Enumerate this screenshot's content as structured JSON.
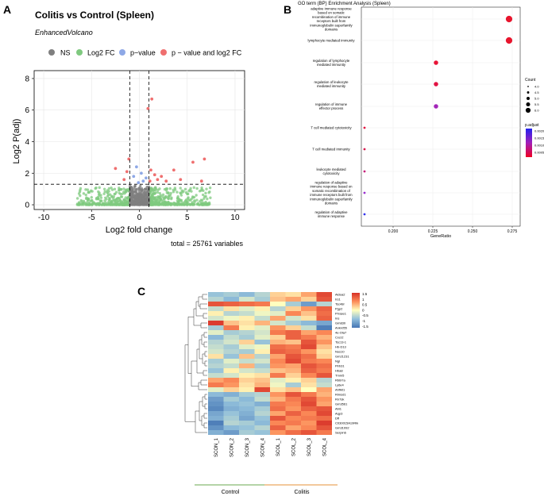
{
  "panels": {
    "a": "A",
    "b": "B",
    "c": "C"
  },
  "chart_data": [
    {
      "type": "scatter",
      "title": "Colitis vs Control (Spleen)",
      "subtitle": "EnhancedVolcano",
      "legend": {
        "placement": "top",
        "entries": [
          {
            "label": "NS",
            "color": "#7f7f7f"
          },
          {
            "label": "Log2 FC",
            "color": "#7fc97f"
          },
          {
            "label": "p−value",
            "color": "#8ea8e6"
          },
          {
            "label": "p − value and log2 FC",
            "color": "#ef6f6f"
          }
        ]
      },
      "xlabel": "Log2 fold change",
      "ylabel": "Log2 P(adj)",
      "xlim": [
        -11,
        11
      ],
      "ylim": [
        -0.3,
        8.5
      ],
      "xticks": [
        -10,
        -5,
        0,
        5,
        10
      ],
      "yticks": [
        0,
        2,
        4,
        6,
        8
      ],
      "fc_cutoff": 1,
      "p_cutoff": 1.3,
      "caption": "total = 25761 variables",
      "significant_points": [
        {
          "x": 1.3,
          "y": 6.7
        },
        {
          "x": 0.9,
          "y": 6.1
        },
        {
          "x": 6.8,
          "y": 2.9
        },
        {
          "x": 5.6,
          "y": 2.7
        },
        {
          "x": -1.1,
          "y": 2.9
        },
        {
          "x": -2.5,
          "y": 2.3
        },
        {
          "x": -1.3,
          "y": 2.1
        },
        {
          "x": 1.2,
          "y": 2.2
        },
        {
          "x": 1.6,
          "y": 1.9
        },
        {
          "x": 2.3,
          "y": 1.8
        },
        {
          "x": 3.6,
          "y": 2.2
        },
        {
          "x": 4.3,
          "y": 1.6
        },
        {
          "x": 6.5,
          "y": 1.5
        },
        {
          "x": -1.6,
          "y": 1.6
        },
        {
          "x": 1.1,
          "y": 1.5
        },
        {
          "x": 2.8,
          "y": 1.5
        },
        {
          "x": 1.9,
          "y": 1.6
        }
      ],
      "pvalue_points": [
        {
          "x": -0.3,
          "y": 2.4
        },
        {
          "x": 0.2,
          "y": 2.0
        },
        {
          "x": -0.6,
          "y": 1.8
        },
        {
          "x": 0.4,
          "y": 1.5
        },
        {
          "x": -0.1,
          "y": 1.4
        },
        {
          "x": 0.7,
          "y": 1.7
        }
      ]
    },
    {
      "type": "dot",
      "title": "GO term (BP) Enrichment Analysis (Spleen)",
      "xlabel": "GeneRatio",
      "xlim": [
        0.18,
        0.28
      ],
      "xticks": [
        0.2,
        0.225,
        0.25,
        0.275
      ],
      "xticklabels": [
        "0.200",
        "0.225",
        "0.250",
        "0.275"
      ],
      "terms": [
        {
          "label": "adaptive immune response based on somatic recombination of immune receptors built from immunoglobulin superfamily domains",
          "lines": [
            "adaptive immune response",
            "based on somatic",
            "recombination of immune",
            "receptors built from",
            "immunoglobulin superfamily",
            "domains"
          ],
          "gene_ratio": 0.273,
          "count": 6,
          "padj": 0.0002,
          "color": "#e8152d"
        },
        {
          "label": "lymphocyte mediated immunity",
          "lines": [
            "lymphocyte mediated immunity"
          ],
          "gene_ratio": 0.273,
          "count": 6,
          "padj": 0.0002,
          "color": "#e8152d"
        },
        {
          "label": "regulation of lymphocyte mediated immunity",
          "lines": [
            "regulation of lymphocyte",
            "mediated immunity"
          ],
          "gene_ratio": 0.227,
          "count": 5,
          "padj": 0.0004,
          "color": "#e81437"
        },
        {
          "label": "regulation of leukocyte mediated immunity",
          "lines": [
            "regulation of leukocyte",
            "mediated immunity"
          ],
          "gene_ratio": 0.227,
          "count": 5,
          "padj": 0.0005,
          "color": "#e21343"
        },
        {
          "label": "regulation of immune effector process",
          "lines": [
            "regulation of immune",
            "effector process"
          ],
          "gene_ratio": 0.227,
          "count": 5,
          "padj": 0.0017,
          "color": "#a326b8"
        },
        {
          "label": "T cell mediated cytotoxicity",
          "lines": [
            "T cell mediated cytotoxicity"
          ],
          "gene_ratio": 0.182,
          "count": 4,
          "padj": 0.0004,
          "color": "#e51340"
        },
        {
          "label": "T cell mediated immunity",
          "lines": [
            "T cell mediated immunity"
          ],
          "gene_ratio": 0.182,
          "count": 4,
          "padj": 0.0005,
          "color": "#d8184c"
        },
        {
          "label": "leukocyte mediated cytotoxicity",
          "lines": [
            "leukocyte mediated",
            "cytotoxicity"
          ],
          "gene_ratio": 0.182,
          "count": 4,
          "padj": 0.0008,
          "color": "#c81e7a"
        },
        {
          "label": "regulation of adaptive immune response based on somatic recombination of immune receptors built from immunoglobulin superfamily domains",
          "lines": [
            "regulation of adaptive",
            "immune response based on",
            "somatic recombination of",
            "immune receptors built from",
            "immunoglobulin superfamily",
            "domains"
          ],
          "gene_ratio": 0.182,
          "count": 4,
          "padj": 0.0017,
          "color": "#9a2ed0"
        },
        {
          "label": "regulation of adaptive immune response",
          "lines": [
            "regulation of adaptive",
            "immune response"
          ],
          "gene_ratio": 0.182,
          "count": 4,
          "padj": 0.0023,
          "color": "#3333ee"
        }
      ],
      "size_legend": {
        "title": "Count",
        "values": [
          "4.0",
          "4.5",
          "5.0",
          "5.5",
          "6.0"
        ]
      },
      "color_legend": {
        "title": "p.adjust",
        "labels": [
          "0.0020",
          "0.0015",
          "0.0010",
          "0.0005"
        ],
        "low_color": "#ee0022",
        "high_color": "#2222ee"
      }
    },
    {
      "type": "heatmap",
      "genes": [
        "Aldoa2",
        "Irs1",
        "Tsc48r",
        "Pgp2",
        "Prrase1",
        "Ins",
        "Gm830",
        "Ankrd55",
        "4e-Ola7",
        "Cxcr2",
        "Tsc13-1",
        "Hb-D13",
        "Nos10",
        "Gm21231",
        "Ngl",
        "Pirb31",
        "Hba8",
        "Tmm5",
        "Rbbl7a",
        "Ly6e4",
        "Ahflkt1",
        "Rimsd1",
        "Rn7sk",
        "Gm3561",
        "Abi1",
        "Aqp3",
        "Dff",
        "C030015A19Rik",
        "Gm31092",
        "Serpin6"
      ],
      "samples": [
        "SCON_1",
        "SCON_2",
        "SCON_3",
        "SCON_4",
        "SCOL_1",
        "SCOL_2",
        "SCOL_3",
        "SCOL_4"
      ],
      "groups": [
        {
          "label": "Control",
          "color": "#6aa84f"
        },
        {
          "label": "Colitis",
          "color": "#e69138"
        }
      ],
      "scale": {
        "min": -1.5,
        "max": 1.5,
        "labels": [
          "1.5",
          "1",
          "0.5",
          "0",
          "-0.5",
          "-1",
          "-1.5"
        ]
      },
      "values": [
        [
          -0.7,
          -0.6,
          -0.8,
          -0.5,
          0.3,
          0.2,
          0.6,
          1.3
        ],
        [
          -0.5,
          -0.8,
          -0.3,
          -0.6,
          0.4,
          0.6,
          0.3,
          1.2
        ],
        [
          1.2,
          1.1,
          1.0,
          0.9,
          0.0,
          -0.6,
          -1.1,
          -0.5
        ],
        [
          -0.4,
          0.2,
          -0.2,
          0.1,
          -0.5,
          0.3,
          0.7,
          1.1
        ],
        [
          0.1,
          -0.5,
          -0.4,
          -0.1,
          -0.2,
          0.8,
          0.4,
          1.0
        ],
        [
          -0.3,
          -0.1,
          0.1,
          -0.4,
          0.6,
          -0.3,
          0.2,
          1.1
        ],
        [
          1.4,
          0.4,
          0.2,
          0.5,
          -0.3,
          -0.6,
          -0.8,
          -1.0
        ],
        [
          -0.6,
          0.9,
          0.1,
          -0.2,
          0.7,
          0.3,
          -0.4,
          -1.4
        ],
        [
          -0.2,
          -0.6,
          -0.5,
          -0.3,
          0.9,
          1.1,
          0.6,
          0.8
        ],
        [
          -0.8,
          -0.4,
          -0.6,
          -0.2,
          0.3,
          1.1,
          0.9,
          0.5
        ],
        [
          -0.5,
          -0.3,
          0.3,
          -0.7,
          0.5,
          0.4,
          1.2,
          0.7
        ],
        [
          -0.4,
          -0.6,
          -0.2,
          -0.1,
          1.0,
          0.9,
          1.3,
          0.4
        ],
        [
          -0.3,
          -0.5,
          -0.6,
          0.1,
          1.1,
          1.0,
          0.7,
          0.2
        ],
        [
          0.2,
          -0.7,
          0.4,
          -0.5,
          0.6,
          1.2,
          1.0,
          0.3
        ],
        [
          -0.6,
          -0.2,
          -0.4,
          -0.3,
          0.8,
          1.3,
          0.9,
          0.8
        ],
        [
          -0.5,
          -0.4,
          0.5,
          -0.6,
          0.7,
          0.6,
          1.2,
          1.0
        ],
        [
          -0.7,
          0.1,
          -0.3,
          -0.4,
          0.4,
          0.5,
          1.1,
          0.9
        ],
        [
          -0.4,
          -0.3,
          0.1,
          0.2,
          0.9,
          0.3,
          0.8,
          1.2
        ],
        [
          0.6,
          0.8,
          0.3,
          0.4,
          -0.2,
          0.1,
          0.3,
          -0.5
        ],
        [
          0.9,
          0.7,
          0.2,
          0.5,
          -0.1,
          -0.6,
          0.2,
          -0.4
        ],
        [
          -0.2,
          0.3,
          0.1,
          1.3,
          0.2,
          0.4,
          0.0,
          0.6
        ],
        [
          -0.8,
          -0.9,
          -0.6,
          -0.5,
          0.7,
          1.2,
          0.9,
          0.5
        ],
        [
          -1.1,
          -0.6,
          -0.8,
          -0.4,
          0.5,
          0.9,
          1.2,
          0.7
        ],
        [
          -1.2,
          -0.8,
          -0.7,
          -0.9,
          0.9,
          0.8,
          1.3,
          0.6
        ],
        [
          -1.3,
          -0.9,
          -0.8,
          -0.6,
          1.0,
          0.7,
          1.1,
          1.2
        ],
        [
          -1.0,
          -0.7,
          -0.9,
          -0.5,
          0.6,
          1.1,
          0.8,
          1.3
        ],
        [
          -0.9,
          -0.6,
          -1.0,
          -0.7,
          1.2,
          0.8,
          0.9,
          1.0
        ],
        [
          -1.4,
          -0.5,
          -0.6,
          -0.8,
          0.8,
          0.9,
          0.7,
          1.4
        ],
        [
          -1.2,
          -0.8,
          -0.7,
          -0.5,
          1.1,
          0.6,
          0.8,
          1.2
        ],
        [
          -0.9,
          -1.1,
          -0.6,
          -0.7,
          0.7,
          1.0,
          1.2,
          0.9
        ]
      ]
    }
  ]
}
